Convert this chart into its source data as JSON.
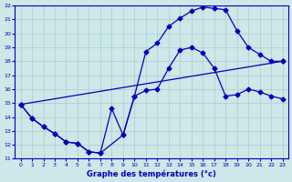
{
  "title": "Graphe des températures (°c)",
  "bg_color": "#cce8e8",
  "line_color": "#0000bb",
  "xlim": [
    -0.5,
    23.5
  ],
  "ylim": [
    11,
    22
  ],
  "xticks": [
    0,
    1,
    2,
    3,
    4,
    5,
    6,
    7,
    8,
    9,
    10,
    11,
    12,
    13,
    14,
    15,
    16,
    17,
    18,
    19,
    20,
    21,
    22,
    23
  ],
  "yticks": [
    11,
    12,
    13,
    14,
    15,
    16,
    17,
    18,
    19,
    20,
    21,
    22
  ],
  "grid_color": "#aacccc",
  "line1_x": [
    0,
    1,
    2,
    3,
    4,
    5,
    6,
    7,
    8,
    9,
    10,
    11,
    12,
    13,
    14,
    15,
    16,
    17,
    18,
    19,
    20,
    21,
    22,
    23
  ],
  "line1_y": [
    14.9,
    13.9,
    13.3,
    12.8,
    12.2,
    12.1,
    11.5,
    11.4,
    14.6,
    12.7,
    15.5,
    15.9,
    16.0,
    17.5,
    18.8,
    19.0,
    18.6,
    17.5,
    15.5,
    15.6,
    16.0,
    15.8,
    15.5,
    15.3
  ],
  "line2_x": [
    0,
    1,
    2,
    3,
    4,
    5,
    6,
    7,
    9,
    10,
    11,
    12,
    13,
    14,
    15,
    16,
    17,
    18,
    19,
    20,
    21,
    22,
    23
  ],
  "line2_y": [
    14.9,
    13.9,
    13.3,
    12.8,
    12.2,
    12.1,
    11.5,
    11.4,
    12.7,
    15.5,
    18.7,
    19.3,
    20.5,
    21.1,
    21.6,
    21.9,
    21.8,
    21.7,
    20.2,
    19.0,
    18.5,
    18.0,
    18.0
  ],
  "line3_x": [
    0,
    23
  ],
  "line3_y": [
    14.9,
    18.0
  ],
  "marker_size": 2.5,
  "line_width": 0.9
}
